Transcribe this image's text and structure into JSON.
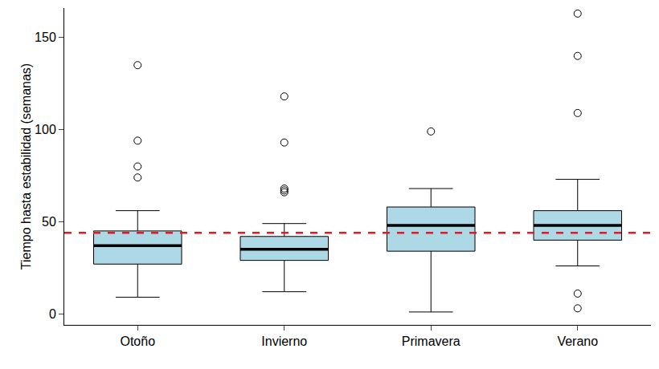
{
  "chart_data": {
    "type": "box",
    "ylabel": "Tiempo hasta estabilidad (semanas)",
    "categories": [
      "Otoño",
      "Invierno",
      "Primavera",
      "Verano"
    ],
    "whisker_low": [
      9,
      12,
      1,
      26
    ],
    "q1": [
      27,
      29,
      34,
      40
    ],
    "median": [
      37,
      35,
      48,
      48
    ],
    "q3": [
      45,
      42,
      58,
      56
    ],
    "whisker_high": [
      56,
      49,
      68,
      73
    ],
    "outliers": [
      [
        74,
        80,
        94,
        135
      ],
      [
        66,
        67,
        68,
        93,
        118
      ],
      [
        99
      ],
      [
        3,
        11,
        109,
        140,
        163
      ]
    ],
    "color": "#add8e6",
    "marker": "circle-open",
    "reference_line": {
      "value": 44,
      "color": "#e8191e",
      "line_style": "dash"
    },
    "ylim": [
      -6,
      166
    ],
    "yticks": [
      0,
      50,
      100,
      150
    ],
    "grid": false
  }
}
